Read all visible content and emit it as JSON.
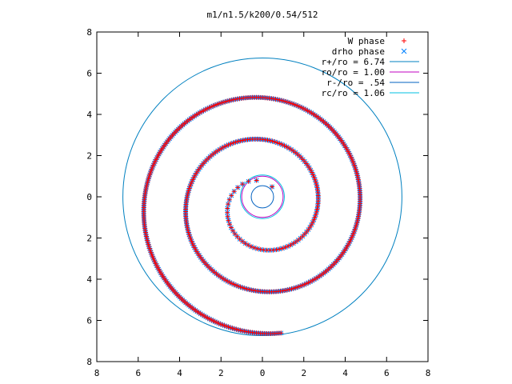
{
  "chart_data": {
    "type": "scatter",
    "title": "m1/n1.5/k200/0.54/512",
    "xlabel": "",
    "ylabel": "",
    "xlim": [
      -8,
      8
    ],
    "ylim": [
      -8,
      8
    ],
    "x_ticks": [
      -8,
      -6,
      -4,
      -2,
      0,
      2,
      4,
      6,
      8
    ],
    "y_ticks": [
      -8,
      -6,
      -4,
      -2,
      0,
      2,
      4,
      6,
      8
    ],
    "x_tick_labels": [
      "8",
      "6",
      "4",
      "2",
      "0",
      "2",
      "4",
      "6",
      "8"
    ],
    "y_tick_labels": [
      "8",
      "6",
      "4",
      "2",
      "0",
      "2",
      "4",
      "6",
      "8"
    ],
    "grid": false,
    "legend_position": "top-right",
    "colors": {
      "w_phase": "#ff0000",
      "drho_phase": "#0080ff",
      "r_plus": "#0080c0",
      "r_o": "#c000c0",
      "r_minus": "#0060c0",
      "r_c": "#00c0e0"
    },
    "legend": [
      {
        "label": "W phase",
        "marker": "plus",
        "color": "#ff0000"
      },
      {
        "label": "drho phase",
        "marker": "cross",
        "color": "#0080ff"
      },
      {
        "label": "r+/ro = 6.74",
        "marker": "line",
        "color": "#0080c0"
      },
      {
        "label": "ro/ro = 1.00",
        "marker": "line",
        "color": "#c000c0"
      },
      {
        "label": "r-/ro = .54",
        "marker": "line",
        "color": "#0060c0"
      },
      {
        "label": "rc/ro = 1.06",
        "marker": "line",
        "color": "#00c0e0"
      }
    ],
    "circles": [
      {
        "name": "r+/ro",
        "radius": 6.74
      },
      {
        "name": "ro/ro",
        "radius": 1.0
      },
      {
        "name": "r-/ro",
        "radius": 0.54
      },
      {
        "name": "rc/ro",
        "radius": 1.06
      }
    ],
    "series": [
      {
        "name": "W phase",
        "spiral": {
          "center": [
            0,
            -0.4
          ],
          "start": [
            0.5,
            0.55
          ],
          "r_start": 1.0,
          "growth_per_turn": 2.03,
          "turns": 2.6,
          "points": 520
        }
      },
      {
        "name": "drho phase",
        "same_as": "W phase"
      }
    ]
  }
}
